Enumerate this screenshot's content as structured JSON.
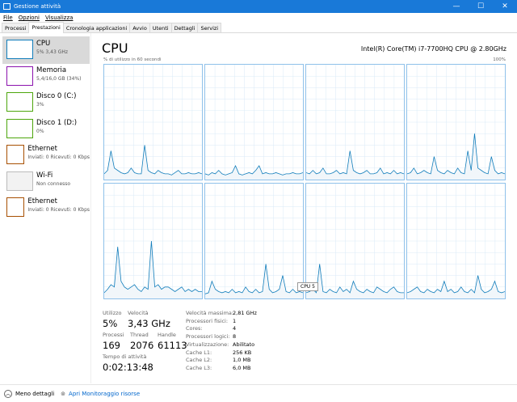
{
  "window": {
    "title": "Gestione attività",
    "min": "—",
    "max": "☐",
    "close": "✕"
  },
  "menu": [
    "File",
    "Opzioni",
    "Visualizza"
  ],
  "tabs": [
    "Processi",
    "Prestazioni",
    "Cronologia applicazioni",
    "Avvio",
    "Utenti",
    "Dettagli",
    "Servizi"
  ],
  "active_tab": "Prestazioni",
  "sidebar": [
    {
      "name": "CPU",
      "sub": "5% 3,43 GHz",
      "color": "#117dbb"
    },
    {
      "name": "Memoria",
      "sub": "5,4/16,0 GB (34%)",
      "color": "#8b12ae"
    },
    {
      "name": "Disco 0 (C:)",
      "sub": "3%",
      "color": "#4da60c"
    },
    {
      "name": "Disco 1 (D:)",
      "sub": "0%",
      "color": "#4da60c"
    },
    {
      "name": "Ethernet",
      "sub": "Inviati: 0 Ricevuti: 0 Kbps",
      "color": "#a74f01"
    },
    {
      "name": "Wi-Fi",
      "sub": "Non connesso",
      "color": "#bbbbbb"
    },
    {
      "name": "Ethernet",
      "sub": "Inviati: 0 Ricevuti: 0 Kbps",
      "color": "#a74f01"
    }
  ],
  "main": {
    "title": "CPU",
    "model": "Intel(R) Core(TM) i7-7700HQ CPU @ 2.80GHz",
    "graph_label": "% di utilizzo in 60 secondi",
    "graph_max": "100%",
    "tooltip": "CPU 5",
    "line_color": "#117dbb"
  },
  "cores": [
    [
      5,
      8,
      25,
      10,
      8,
      6,
      5,
      6,
      10,
      6,
      5,
      5,
      30,
      8,
      6,
      5,
      8,
      6,
      5,
      5,
      4,
      6,
      8,
      5,
      5,
      6,
      5,
      5,
      6,
      5
    ],
    [
      5,
      4,
      6,
      5,
      8,
      5,
      4,
      5,
      6,
      12,
      5,
      4,
      5,
      6,
      5,
      8,
      12,
      5,
      6,
      5,
      5,
      6,
      5,
      4,
      5,
      5,
      6,
      5,
      5,
      6
    ],
    [
      6,
      5,
      8,
      5,
      6,
      10,
      5,
      5,
      6,
      8,
      5,
      6,
      5,
      25,
      8,
      6,
      5,
      6,
      8,
      5,
      5,
      6,
      10,
      5,
      6,
      5,
      8,
      5,
      6,
      5
    ],
    [
      5,
      6,
      10,
      5,
      6,
      8,
      6,
      5,
      20,
      8,
      6,
      5,
      8,
      6,
      5,
      10,
      6,
      5,
      25,
      8,
      40,
      10,
      8,
      6,
      5,
      20,
      8,
      5,
      6,
      5
    ],
    [
      5,
      8,
      12,
      10,
      45,
      15,
      10,
      8,
      10,
      12,
      8,
      6,
      10,
      8,
      50,
      10,
      12,
      8,
      10,
      10,
      8,
      6,
      8,
      10,
      6,
      8,
      6,
      8,
      6,
      6
    ],
    [
      4,
      5,
      15,
      8,
      6,
      5,
      6,
      5,
      8,
      5,
      6,
      5,
      10,
      6,
      5,
      8,
      5,
      6,
      30,
      8,
      5,
      6,
      8,
      20,
      6,
      5,
      8,
      5,
      6,
      5
    ],
    [
      5,
      6,
      8,
      5,
      30,
      6,
      5,
      8,
      6,
      5,
      10,
      6,
      8,
      5,
      15,
      8,
      6,
      5,
      8,
      6,
      5,
      10,
      8,
      6,
      5,
      8,
      10,
      6,
      5,
      5
    ],
    [
      5,
      6,
      8,
      10,
      6,
      5,
      8,
      6,
      5,
      8,
      6,
      15,
      6,
      8,
      5,
      6,
      10,
      6,
      5,
      8,
      5,
      20,
      8,
      5,
      6,
      8,
      15,
      6,
      5,
      6
    ]
  ],
  "stats": {
    "utilizzo_label": "Utilizzo",
    "utilizzo": "5%",
    "velocita_label": "Velocità",
    "velocita": "3,43 GHz",
    "processi_label": "Processi",
    "processi": "169",
    "thread_label": "Thread",
    "thread": "2076",
    "handle_label": "Handle",
    "handle": "61113",
    "uptime_label": "Tempo di attività",
    "uptime": "0:02:13:48"
  },
  "details": [
    [
      "Velocità massima:",
      "2,81 GHz"
    ],
    [
      "Processori fisici:",
      "1"
    ],
    [
      "Cores:",
      "4"
    ],
    [
      "Processori logici:",
      "8"
    ],
    [
      "Virtualizzazione:",
      "Abilitato"
    ],
    [
      "Cache L1:",
      "256 KB"
    ],
    [
      "Cache L2:",
      "1,0 MB"
    ],
    [
      "Cache L3:",
      "6,0 MB"
    ]
  ],
  "footer": {
    "less": "Meno dettagli",
    "monitor": "Apri Monitoraggio risorse"
  }
}
